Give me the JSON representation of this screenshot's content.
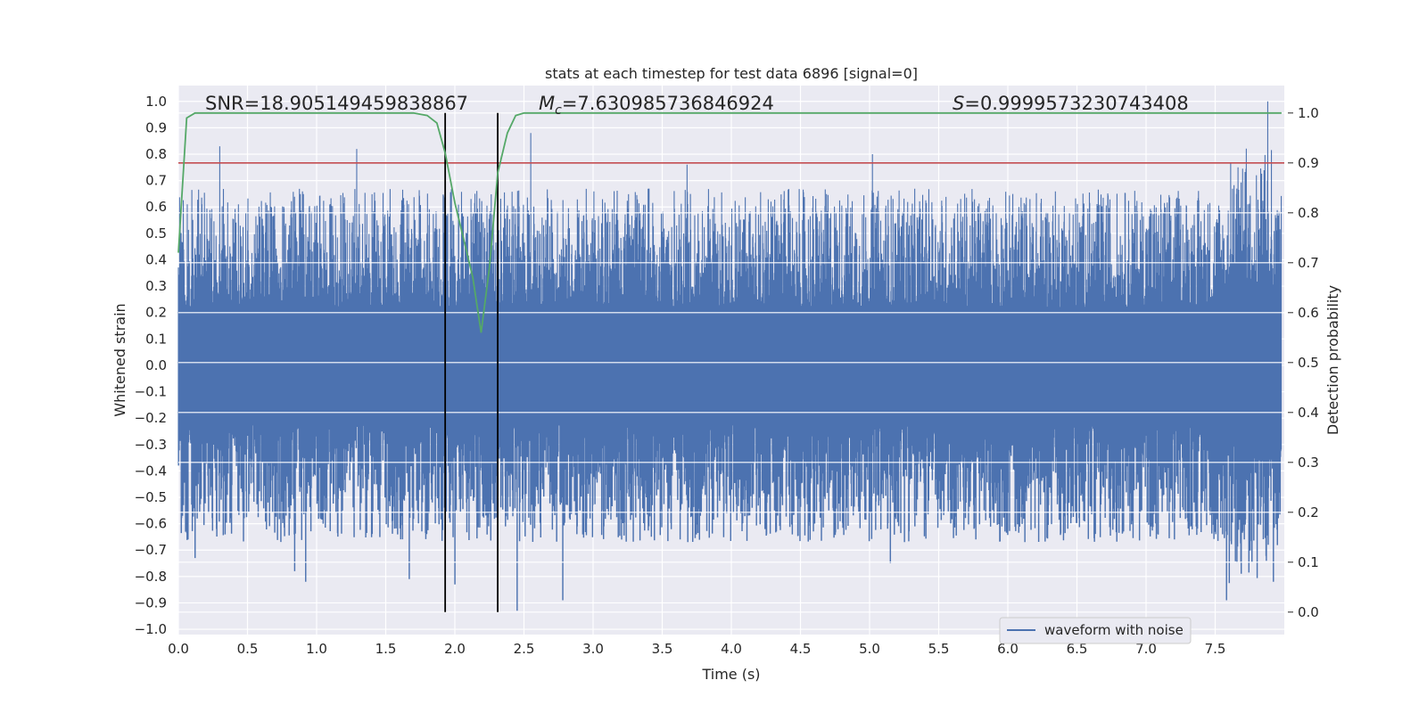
{
  "chart_data": {
    "type": "line",
    "title": "stats at each timestep for test data 6896 [signal=0]",
    "xlabel": "Time (s)",
    "ylabel": "Whitened strain",
    "y2label": "Detection probability",
    "xlim": [
      0.0,
      8.0
    ],
    "ylim": [
      -1.02,
      1.06
    ],
    "y2lim": [
      -0.045,
      1.055
    ],
    "xticks": [
      "0.0",
      "0.5",
      "1.0",
      "1.5",
      "2.0",
      "2.5",
      "3.0",
      "3.5",
      "4.0",
      "4.5",
      "5.0",
      "5.5",
      "6.0",
      "6.5",
      "7.0",
      "7.5"
    ],
    "yticks": [
      "1.0",
      "0.9",
      "0.8",
      "0.7",
      "0.6",
      "0.5",
      "0.4",
      "0.3",
      "0.2",
      "0.1",
      "0.0",
      "−0.1",
      "−0.2",
      "−0.3",
      "−0.4",
      "−0.5",
      "−0.6",
      "−0.7",
      "−0.8",
      "−0.9",
      "−1.0"
    ],
    "y2ticks": [
      "1.0",
      "0.9",
      "0.8",
      "0.7",
      "0.6",
      "0.5",
      "0.4",
      "0.3",
      "0.2",
      "0.1",
      "0.0"
    ],
    "annotations": {
      "snr": "SNR=18.905149459838867",
      "mc_symbol": "M",
      "mc_sub": "c",
      "mc_value": "=7.630985736846924",
      "s_symbol": "S",
      "s_value": "=0.9999573230743408"
    },
    "legend": {
      "label": "waveform with noise",
      "location": "lower right"
    },
    "threshold": {
      "value": 0.9,
      "axis": "right",
      "color": "#c44e52"
    },
    "vertical_lines": [
      1.93,
      2.31
    ],
    "waveform": {
      "name": "waveform with noise",
      "color": "#4c72b0",
      "duration_s": 7.98,
      "core_amplitude": 0.22,
      "peak_x": [
        0.3,
        1.29,
        2.55,
        2.78,
        3.68,
        5.02,
        7.88
      ],
      "peak_y": [
        0.83,
        0.82,
        0.88,
        -0.89,
        0.76,
        0.8,
        1.0
      ],
      "trough_x": [
        0.12,
        0.84,
        0.92,
        1.67,
        2.0,
        2.45,
        5.15,
        7.58,
        7.92
      ],
      "trough_y": [
        -0.73,
        -0.78,
        -0.82,
        -0.81,
        -0.83,
        -0.93,
        -0.75,
        -0.89,
        -0.82
      ]
    },
    "detection_probability": {
      "name": "Detection probability",
      "color": "#55a868",
      "x": [
        0.0,
        0.06,
        0.12,
        0.25,
        0.5,
        1.0,
        1.5,
        1.7,
        1.8,
        1.87,
        1.93,
        2.0,
        2.07,
        2.13,
        2.19,
        2.25,
        2.31,
        2.38,
        2.44,
        2.5,
        2.6,
        3.0,
        4.0,
        5.0,
        5.5,
        6.0,
        7.0,
        7.98
      ],
      "y": [
        0.72,
        0.99,
        1.0,
        1.0,
        1.0,
        1.0,
        1.0,
        1.0,
        0.995,
        0.98,
        0.92,
        0.82,
        0.74,
        0.67,
        0.56,
        0.69,
        0.88,
        0.96,
        0.995,
        1.0,
        1.0,
        1.0,
        1.0,
        1.0,
        1.0,
        1.0,
        1.0,
        1.0
      ]
    }
  }
}
